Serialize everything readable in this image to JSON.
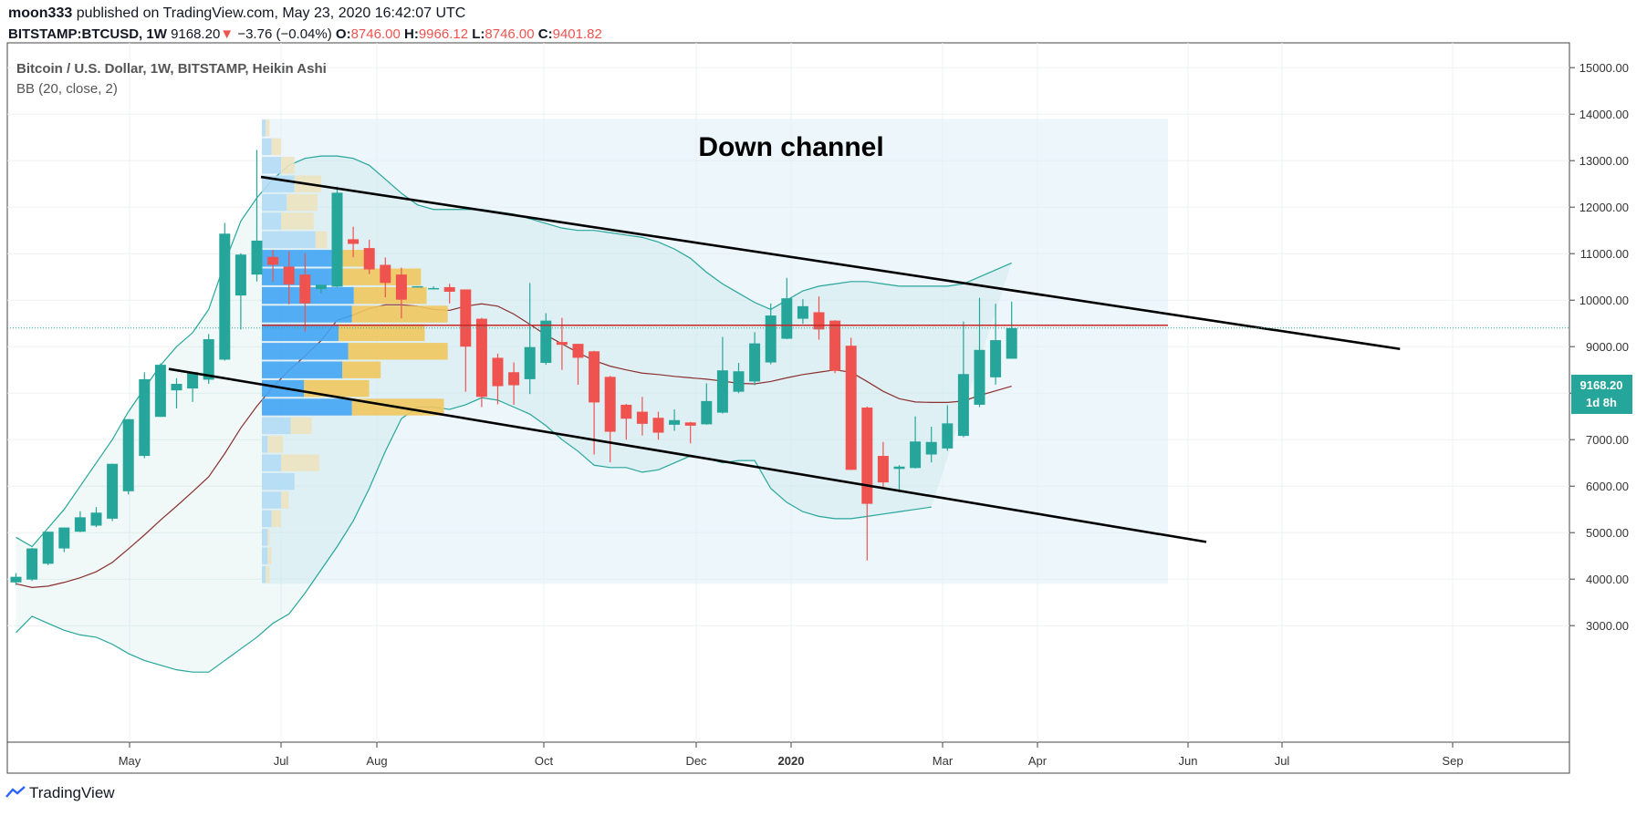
{
  "header": {
    "line1_user": "moon333",
    "line1_text": "published on TradingView.com, May 23, 2020 16:42:07 UTC",
    "symbol": "BITSTAMP:BTCUSD, 1W",
    "last": "9168.20",
    "change": "−3.76 (−0.04%)",
    "o_label": "O:",
    "o_val": "8746.00",
    "h_label": "H:",
    "h_val": "9966.12",
    "l_label": "L:",
    "l_val": "8746.00",
    "c_label": "C:",
    "c_val": "9401.82"
  },
  "legend": {
    "title": "Bitcoin / U.S. Dollar, 1W, BITSTAMP, Heikin Ashi",
    "indicator": "BB (20, close, 2)"
  },
  "annotation": "Down channel",
  "price_badge": {
    "value": "9168.20",
    "countdown": "1d 8h",
    "color": "#26a69a"
  },
  "footer": {
    "brand": "TradingView"
  },
  "colors": {
    "up": "#26a69a",
    "down": "#ef5350",
    "bb_band": "#26a69a",
    "bb_basis": "#8b2f2f",
    "vp_up": "#42a5f5",
    "vp_down": "#f0c75e",
    "resistance": "#c62828"
  },
  "chart_data": {
    "type": "candlestick",
    "style": "Heikin Ashi",
    "ylim": [
      2500,
      15400
    ],
    "y_ticks": [
      "15000.00",
      "14000.00",
      "13000.00",
      "12000.00",
      "11000.00",
      "10000.00",
      "9000.00",
      "8000.00",
      "7000.00",
      "6000.00",
      "5000.00",
      "4000.00",
      "3000.00"
    ],
    "x_ticks": [
      "May",
      "Jul",
      "Aug",
      "Oct",
      "Dec",
      "2020",
      "Mar",
      "Apr",
      "Jun",
      "Jul",
      "Sep"
    ],
    "candles": [
      [
        3930,
        4050,
        3870,
        4130
      ],
      [
        3990,
        4660,
        3960,
        4670
      ],
      [
        4330,
        5020,
        4300,
        5020
      ],
      [
        4660,
        5110,
        4580,
        5110
      ],
      [
        5020,
        5330,
        5010,
        5460
      ],
      [
        5150,
        5430,
        5120,
        5550
      ],
      [
        5300,
        6480,
        5250,
        6480
      ],
      [
        5890,
        7440,
        5820,
        7440
      ],
      [
        6650,
        8300,
        6600,
        8450
      ],
      [
        7490,
        8610,
        7490,
        8640
      ],
      [
        8060,
        8200,
        7670,
        8320
      ],
      [
        8100,
        8450,
        7810,
        8400
      ],
      [
        8290,
        9160,
        8200,
        9270
      ],
      [
        8720,
        11430,
        8700,
        11660
      ],
      [
        10100,
        10980,
        9370,
        11010
      ],
      [
        10550,
        11280,
        10400,
        13230
      ],
      [
        10930,
        10760,
        10400,
        11080
      ],
      [
        10720,
        10340,
        9910,
        11050
      ],
      [
        10550,
        9930,
        9320,
        11010
      ],
      [
        10240,
        10330,
        10150,
        10330
      ],
      [
        10290,
        12310,
        10280,
        12440
      ],
      [
        11310,
        11210,
        10920,
        11580
      ],
      [
        11120,
        10660,
        10560,
        11300
      ],
      [
        10760,
        10370,
        10060,
        10920
      ],
      [
        10550,
        10010,
        9610,
        10700
      ],
      [
        10300,
        10300,
        10280,
        10300
      ],
      [
        10260,
        10260,
        10230,
        10300
      ],
      [
        10280,
        10180,
        9930,
        10350
      ],
      [
        10230,
        9000,
        8030,
        10180
      ],
      [
        9600,
        7920,
        7700,
        9620
      ],
      [
        8760,
        8150,
        7760,
        8850
      ],
      [
        8450,
        8170,
        7750,
        8660
      ],
      [
        8300,
        8990,
        7980,
        10370
      ],
      [
        8650,
        9560,
        8610,
        9720
      ],
      [
        9100,
        9040,
        8500,
        9620
      ],
      [
        9060,
        8760,
        8180,
        9010
      ],
      [
        8900,
        7800,
        6680,
        8910
      ],
      [
        8350,
        7170,
        6510,
        8370
      ],
      [
        7750,
        7450,
        7000,
        7770
      ],
      [
        7600,
        7340,
        7090,
        7920
      ],
      [
        7470,
        7150,
        7000,
        7600
      ],
      [
        7320,
        7420,
        7190,
        7650
      ],
      [
        7370,
        7300,
        6920,
        7380
      ],
      [
        7330,
        7830,
        7320,
        8210
      ],
      [
        7580,
        8490,
        7560,
        9210
      ],
      [
        8030,
        8470,
        8000,
        8650
      ],
      [
        8250,
        9070,
        8170,
        9310
      ],
      [
        8660,
        9670,
        8620,
        9930
      ],
      [
        9170,
        10040,
        9160,
        10480
      ],
      [
        9600,
        9870,
        9490,
        10020
      ],
      [
        9740,
        9370,
        9150,
        10080
      ],
      [
        9560,
        8480,
        8430,
        9570
      ],
      [
        9020,
        6350,
        6350,
        9190
      ],
      [
        7690,
        5620,
        4400,
        7710
      ],
      [
        6650,
        6080,
        5950,
        6950
      ],
      [
        6370,
        6420,
        5870,
        6450
      ],
      [
        6390,
        6960,
        6380,
        7500
      ],
      [
        6680,
        6950,
        6510,
        7280
      ],
      [
        6810,
        7350,
        6760,
        7740
      ],
      [
        7080,
        8410,
        7050,
        9540
      ],
      [
        7750,
        8930,
        7700,
        10050
      ],
      [
        8340,
        9140,
        8180,
        9920
      ],
      [
        8740,
        9400,
        8740,
        9970
      ]
    ],
    "bb_upper": [
      [
        0,
        4900
      ],
      [
        1,
        4700
      ],
      [
        2,
        5100
      ],
      [
        3,
        5500
      ],
      [
        4,
        6000
      ],
      [
        5,
        6500
      ],
      [
        6,
        7000
      ],
      [
        7,
        7600
      ],
      [
        8,
        8100
      ],
      [
        9,
        8600
      ],
      [
        10,
        9000
      ],
      [
        11,
        9300
      ],
      [
        12,
        9800
      ],
      [
        13,
        10800
      ],
      [
        14,
        11700
      ],
      [
        15,
        12200
      ],
      [
        16,
        12600
      ],
      [
        17,
        12900
      ],
      [
        18,
        13050
      ],
      [
        19,
        13100
      ],
      [
        20,
        13100
      ],
      [
        21,
        13050
      ],
      [
        22,
        12900
      ],
      [
        23,
        12600
      ],
      [
        24,
        12300
      ],
      [
        25,
        12050
      ],
      [
        26,
        11950
      ],
      [
        27,
        11950
      ],
      [
        28,
        11950
      ],
      [
        29,
        11950
      ],
      [
        30,
        11900
      ],
      [
        31,
        11850
      ],
      [
        32,
        11750
      ],
      [
        33,
        11650
      ],
      [
        34,
        11550
      ],
      [
        35,
        11500
      ],
      [
        36,
        11500
      ],
      [
        37,
        11450
      ],
      [
        38,
        11400
      ],
      [
        39,
        11350
      ],
      [
        40,
        11250
      ],
      [
        41,
        11100
      ],
      [
        42,
        10900
      ],
      [
        43,
        10600
      ],
      [
        44,
        10350
      ],
      [
        45,
        10150
      ],
      [
        46,
        9950
      ],
      [
        47,
        9800
      ],
      [
        48,
        10000
      ],
      [
        49,
        10200
      ],
      [
        50,
        10300
      ],
      [
        51,
        10350
      ],
      [
        52,
        10400
      ],
      [
        53,
        10400
      ],
      [
        54,
        10350
      ],
      [
        55,
        10300
      ],
      [
        56,
        10300
      ],
      [
        57,
        10300
      ],
      [
        58,
        10300
      ],
      [
        59,
        10350
      ],
      [
        60,
        10500
      ],
      [
        61,
        10650
      ],
      [
        62,
        10800
      ]
    ],
    "bb_basis": [
      [
        0,
        3900
      ],
      [
        1,
        3820
      ],
      [
        2,
        3850
      ],
      [
        3,
        3930
      ],
      [
        4,
        4030
      ],
      [
        5,
        4160
      ],
      [
        6,
        4360
      ],
      [
        7,
        4650
      ],
      [
        8,
        4950
      ],
      [
        9,
        5270
      ],
      [
        10,
        5570
      ],
      [
        11,
        5880
      ],
      [
        12,
        6200
      ],
      [
        13,
        6700
      ],
      [
        14,
        7250
      ],
      [
        15,
        7720
      ],
      [
        16,
        8130
      ],
      [
        17,
        8490
      ],
      [
        18,
        8800
      ],
      [
        19,
        9130
      ],
      [
        20,
        9570
      ],
      [
        21,
        9680
      ],
      [
        22,
        9820
      ],
      [
        23,
        9900
      ],
      [
        24,
        9900
      ],
      [
        25,
        9870
      ],
      [
        26,
        9800
      ],
      [
        27,
        9780
      ],
      [
        28,
        9870
      ],
      [
        29,
        9920
      ],
      [
        30,
        9870
      ],
      [
        31,
        9700
      ],
      [
        32,
        9480
      ],
      [
        33,
        9250
      ],
      [
        34,
        9060
      ],
      [
        35,
        8870
      ],
      [
        36,
        8700
      ],
      [
        37,
        8580
      ],
      [
        38,
        8500
      ],
      [
        39,
        8430
      ],
      [
        40,
        8400
      ],
      [
        41,
        8360
      ],
      [
        42,
        8330
      ],
      [
        43,
        8300
      ],
      [
        44,
        8260
      ],
      [
        45,
        8210
      ],
      [
        46,
        8200
      ],
      [
        47,
        8250
      ],
      [
        48,
        8330
      ],
      [
        49,
        8400
      ],
      [
        50,
        8450
      ],
      [
        51,
        8500
      ],
      [
        52,
        8450
      ],
      [
        53,
        8250
      ],
      [
        54,
        8040
      ],
      [
        55,
        7880
      ],
      [
        56,
        7810
      ],
      [
        57,
        7800
      ],
      [
        58,
        7800
      ],
      [
        59,
        7830
      ],
      [
        60,
        7950
      ],
      [
        61,
        8050
      ],
      [
        62,
        8150
      ]
    ],
    "bb_lower": [
      [
        0,
        2850
      ],
      [
        1,
        3200
      ],
      [
        2,
        3050
      ],
      [
        3,
        2900
      ],
      [
        4,
        2800
      ],
      [
        5,
        2750
      ],
      [
        6,
        2600
      ],
      [
        7,
        2400
      ],
      [
        8,
        2250
      ],
      [
        9,
        2150
      ],
      [
        10,
        2050
      ],
      [
        11,
        2000
      ],
      [
        12,
        2000
      ],
      [
        13,
        2250
      ],
      [
        14,
        2500
      ],
      [
        15,
        2750
      ],
      [
        16,
        3050
      ],
      [
        17,
        3250
      ],
      [
        18,
        3700
      ],
      [
        19,
        4200
      ],
      [
        20,
        4700
      ],
      [
        21,
        5250
      ],
      [
        22,
        5950
      ],
      [
        23,
        6750
      ],
      [
        24,
        7450
      ],
      [
        25,
        7700
      ],
      [
        26,
        7700
      ],
      [
        27,
        7650
      ],
      [
        28,
        7750
      ],
      [
        29,
        7900
      ],
      [
        30,
        7850
      ],
      [
        31,
        7700
      ],
      [
        32,
        7550
      ],
      [
        33,
        7300
      ],
      [
        34,
        7000
      ],
      [
        35,
        6750
      ],
      [
        36,
        6450
      ],
      [
        37,
        6400
      ],
      [
        38,
        6400
      ],
      [
        39,
        6300
      ],
      [
        40,
        6350
      ],
      [
        41,
        6500
      ],
      [
        42,
        6650
      ],
      [
        43,
        6600
      ],
      [
        44,
        6500
      ],
      [
        45,
        6550
      ],
      [
        46,
        6550
      ],
      [
        47,
        5950
      ],
      [
        48,
        5650
      ],
      [
        49,
        5450
      ],
      [
        50,
        5350
      ],
      [
        51,
        5300
      ],
      [
        52,
        5300
      ],
      [
        53,
        5350
      ],
      [
        54,
        5400
      ],
      [
        55,
        5450
      ],
      [
        56,
        5500
      ],
      [
        57,
        5550
      ]
    ],
    "volume_profile_ylim": [
      3900,
      13900
    ],
    "volume_profile": [
      {
        "up": 2,
        "down": 2
      },
      {
        "up": 3,
        "down": 2
      },
      {
        "up": 3,
        "down": 1
      },
      {
        "up": 5,
        "down": 5
      },
      {
        "up": 10,
        "down": 4
      },
      {
        "up": 17,
        "down": 0
      },
      {
        "up": 10,
        "down": 20
      },
      {
        "up": 3,
        "down": 8
      },
      {
        "up": 15,
        "down": 11
      },
      {
        "up": 47,
        "down": 48
      },
      {
        "up": 22,
        "down": 34
      },
      {
        "up": 42,
        "down": 20
      },
      {
        "up": 45,
        "down": 52
      },
      {
        "up": 40,
        "down": 45
      },
      {
        "up": 47,
        "down": 50
      },
      {
        "up": 48,
        "down": 38
      },
      {
        "up": 40,
        "down": 43
      },
      {
        "up": 40,
        "down": 16
      },
      {
        "up": 28,
        "down": 6
      },
      {
        "up": 10,
        "down": 17
      },
      {
        "up": 13,
        "down": 16
      },
      {
        "up": 17,
        "down": 14
      },
      {
        "up": 10,
        "down": 7
      },
      {
        "up": 5,
        "down": 5
      },
      {
        "up": 2,
        "down": 2
      }
    ],
    "down_channel": {
      "upper": [
        [
          0,
          12650
        ],
        [
          57,
          8950
        ]
      ],
      "lower": [
        [
          0,
          8520
        ],
        [
          52,
          4800
        ]
      ]
    },
    "resistance_level": 9460,
    "last_price_line": 9401.82
  }
}
